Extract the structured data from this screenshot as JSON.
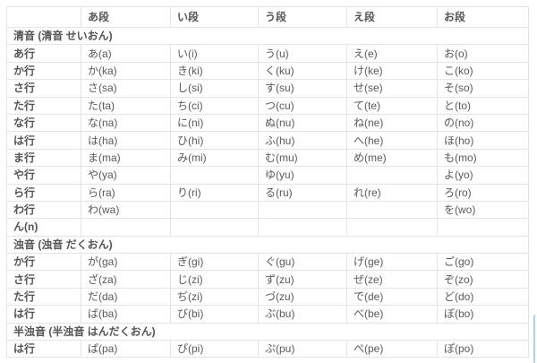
{
  "table": {
    "columns": [
      "",
      "あ段",
      "い段",
      "う段",
      "え段",
      "お段"
    ],
    "sections": [
      {
        "title": "清音 (清音 せいおん)",
        "rows": [
          {
            "header": "あ行",
            "cells": [
              "あ(a)",
              "い(i)",
              "う(u)",
              "え(e)",
              "お(o)"
            ]
          },
          {
            "header": "か行",
            "cells": [
              "か(ka)",
              "き(ki)",
              "く(ku)",
              "け(ke)",
              "こ(ko)"
            ]
          },
          {
            "header": "さ行",
            "cells": [
              "さ(sa)",
              "し(si)",
              "す(su)",
              "せ(se)",
              "そ(so)"
            ]
          },
          {
            "header": "た行",
            "cells": [
              "た(ta)",
              "ち(ci)",
              "つ(cu)",
              "て(te)",
              "と(to)"
            ]
          },
          {
            "header": "な行",
            "cells": [
              "な(na)",
              "に(ni)",
              "ぬ(nu)",
              "ね(ne)",
              "の(no)"
            ]
          },
          {
            "header": "は行",
            "cells": [
              "は(ha)",
              "ひ(hi)",
              "ふ(hu)",
              "へ(he)",
              "ほ(ho)"
            ]
          },
          {
            "header": "ま行",
            "cells": [
              "ま(ma)",
              "み(mi)",
              "む(mu)",
              "め(me)",
              "も(mo)"
            ]
          },
          {
            "header": "や行",
            "cells": [
              "や(ya)",
              "",
              "ゆ(yu)",
              "",
              "よ(yo)"
            ]
          },
          {
            "header": "ら行",
            "cells": [
              "ら(ra)",
              "り(ri)",
              "る(ru)",
              "れ(re)",
              "ろ(ro)"
            ]
          },
          {
            "header": "わ行",
            "cells": [
              "わ(wa)",
              "",
              "",
              "",
              "を(wo)"
            ]
          },
          {
            "header": "ん(n)",
            "cells": [
              "",
              "",
              "",
              "",
              ""
            ]
          }
        ]
      },
      {
        "title": "浊音 (浊音 だくおん)",
        "rows": [
          {
            "header": "か行",
            "cells": [
              "が(ga)",
              "ぎ(gi)",
              "ぐ(gu)",
              "げ(ge)",
              "ご(go)"
            ]
          },
          {
            "header": "さ行",
            "cells": [
              "ざ(za)",
              "じ(zi)",
              "ず(zu)",
              "ぜ(ze)",
              "ぞ(zo)"
            ]
          },
          {
            "header": "た行",
            "cells": [
              "だ(da)",
              "ぢ(zi)",
              "づ(zu)",
              "で(de)",
              "ど(do)"
            ]
          },
          {
            "header": "は行",
            "cells": [
              "ば(ba)",
              "び(bi)",
              "ぶ(bu)",
              "べ(be)",
              "ぼ(bo)"
            ]
          }
        ]
      },
      {
        "title": "半浊音 (半浊音 はんだくおん)",
        "rows": [
          {
            "header": "は行",
            "cells": [
              "ぱ(pa)",
              "ぴ(pi)",
              "ぷ(pu)",
              "ぺ(pe)",
              "ぽ(po)"
            ]
          }
        ]
      }
    ]
  },
  "colors": {
    "border": "#e4e4e4",
    "text": "#595959",
    "header_text": "#555555",
    "background": "#ffffff",
    "scrollbar_thumb": "#a9d4e6"
  }
}
